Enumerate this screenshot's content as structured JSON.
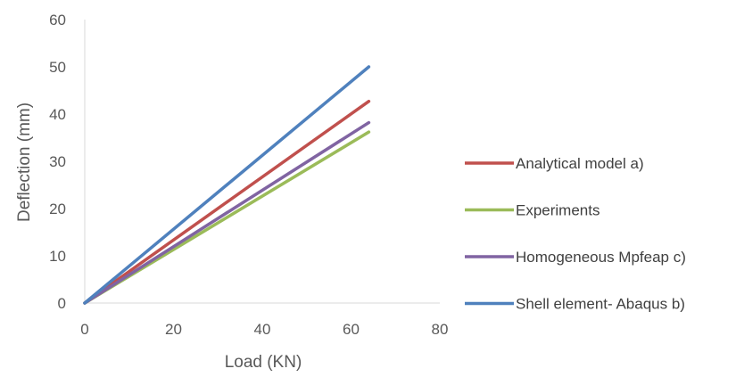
{
  "chart_data": {
    "type": "line",
    "title": "",
    "xlabel": "Load (KN)",
    "ylabel": "Deflection (mm)",
    "xlim": [
      0,
      80
    ],
    "ylim": [
      0,
      60
    ],
    "xticks": [
      0,
      20,
      40,
      60,
      80
    ],
    "yticks": [
      0,
      10,
      20,
      30,
      40,
      50,
      60
    ],
    "grid": false,
    "legend_position": "right",
    "series": [
      {
        "name": "Analytical model a)",
        "color": "#c0504d",
        "x": [
          0,
          64
        ],
        "y": [
          0,
          42.7
        ]
      },
      {
        "name": "Experiments",
        "color": "#9bbb59",
        "x": [
          0,
          64
        ],
        "y": [
          0,
          36.2
        ]
      },
      {
        "name": "Homogeneous Mpfeap c)",
        "color": "#8064a2",
        "x": [
          0,
          64
        ],
        "y": [
          0,
          38.2
        ]
      },
      {
        "name": "Shell element- Abaqus b)",
        "color": "#4f81bd",
        "x": [
          0,
          64
        ],
        "y": [
          0,
          50
        ]
      }
    ]
  }
}
